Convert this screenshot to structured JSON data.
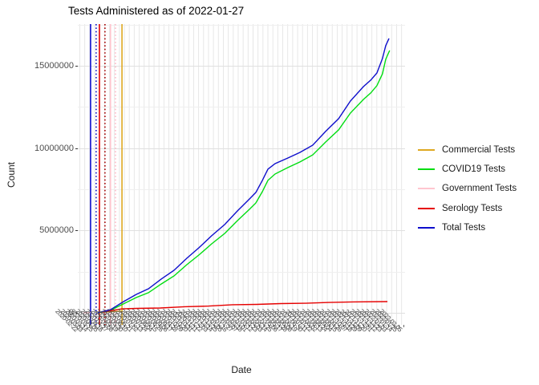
{
  "chart_data": {
    "type": "line",
    "title": "Tests Administered as of 2022-01-27",
    "xlabel": "Date",
    "ylabel": "Count",
    "x_axis": {
      "tick_label_count": 66,
      "tick_start_date": "2020-02-22",
      "tick_end_date": "2022-02-05",
      "labels_overlapping_illegible": true
    },
    "y_axis": {
      "ticks": [
        0,
        5000000,
        10000000,
        15000000
      ],
      "minor_ticks": [
        2500000,
        7500000,
        12500000,
        17500000
      ],
      "min": 0,
      "max": 17500000
    },
    "colors": {
      "commercial": "#DEA821",
      "covid19": "#00DD11",
      "government": "#FFC6CF",
      "serology": "#E60000",
      "total": "#0E0ECC"
    },
    "series": [
      {
        "name": "Commercial Tests",
        "color": "#DEA821",
        "points": [
          [
            0.061,
            0
          ],
          [
            0.081,
            50000
          ],
          [
            0.105,
            70000
          ],
          [
            0.135,
            100000
          ]
        ]
      },
      {
        "name": "COVID19 Tests",
        "color": "#00DD11",
        "points": [
          [
            0.061,
            0
          ],
          [
            0.1,
            150000
          ],
          [
            0.14,
            550000
          ],
          [
            0.179,
            930000
          ],
          [
            0.216,
            1220000
          ],
          [
            0.255,
            1750000
          ],
          [
            0.294,
            2240000
          ],
          [
            0.333,
            2920000
          ],
          [
            0.37,
            3510000
          ],
          [
            0.409,
            4190000
          ],
          [
            0.449,
            4820000
          ],
          [
            0.488,
            5600000
          ],
          [
            0.525,
            6290000
          ],
          [
            0.544,
            6670000
          ],
          [
            0.564,
            7360000
          ],
          [
            0.581,
            8040000
          ],
          [
            0.603,
            8430000
          ],
          [
            0.642,
            8820000
          ],
          [
            0.679,
            9160000
          ],
          [
            0.718,
            9590000
          ],
          [
            0.757,
            10370000
          ],
          [
            0.797,
            11110000
          ],
          [
            0.833,
            12130000
          ],
          [
            0.873,
            12960000
          ],
          [
            0.895,
            13350000
          ],
          [
            0.914,
            13790000
          ],
          [
            0.931,
            14510000
          ],
          [
            0.941,
            15390000
          ],
          [
            0.953,
            15930000
          ]
        ]
      },
      {
        "name": "Government Tests",
        "color": "#FFC6CF",
        "points": [
          [
            0.017,
            0
          ],
          [
            0.039,
            15000
          ]
        ]
      },
      {
        "name": "Serology Tests",
        "color": "#E60000",
        "points": [
          [
            0.076,
            50000
          ],
          [
            0.135,
            240000
          ],
          [
            0.179,
            270000
          ],
          [
            0.252,
            290000
          ],
          [
            0.326,
            370000
          ],
          [
            0.4,
            410000
          ],
          [
            0.473,
            490000
          ],
          [
            0.547,
            510000
          ],
          [
            0.62,
            560000
          ],
          [
            0.694,
            580000
          ],
          [
            0.767,
            630000
          ],
          [
            0.841,
            660000
          ],
          [
            0.946,
            680000
          ]
        ]
      },
      {
        "name": "Total Tests",
        "color": "#0E0ECC",
        "points": [
          [
            0.061,
            0
          ],
          [
            0.1,
            190000
          ],
          [
            0.14,
            680000
          ],
          [
            0.179,
            1120000
          ],
          [
            0.216,
            1460000
          ],
          [
            0.255,
            2050000
          ],
          [
            0.294,
            2580000
          ],
          [
            0.333,
            3310000
          ],
          [
            0.37,
            3950000
          ],
          [
            0.409,
            4680000
          ],
          [
            0.449,
            5360000
          ],
          [
            0.488,
            6190000
          ],
          [
            0.525,
            6920000
          ],
          [
            0.544,
            7310000
          ],
          [
            0.564,
            8040000
          ],
          [
            0.581,
            8720000
          ],
          [
            0.603,
            9060000
          ],
          [
            0.642,
            9400000
          ],
          [
            0.679,
            9740000
          ],
          [
            0.718,
            10180000
          ],
          [
            0.757,
            11010000
          ],
          [
            0.797,
            11790000
          ],
          [
            0.833,
            12860000
          ],
          [
            0.873,
            13740000
          ],
          [
            0.895,
            14130000
          ],
          [
            0.914,
            14560000
          ],
          [
            0.931,
            15440000
          ],
          [
            0.941,
            16220000
          ],
          [
            0.951,
            16660000
          ]
        ]
      }
    ],
    "vlines": [
      {
        "x": 0.039,
        "color": "#0E0ECC",
        "style": "solid"
      },
      {
        "x": 0.056,
        "color": "#0E0ECC",
        "style": "dotted"
      },
      {
        "x": 0.066,
        "color": "#E60000",
        "style": "solid"
      },
      {
        "x": 0.083,
        "color": "#A40000",
        "style": "dotted"
      },
      {
        "x": 0.1,
        "color": "#FFC6CF",
        "style": "solid"
      },
      {
        "x": 0.115,
        "color": "#FFB9C6",
        "style": "dotted"
      },
      {
        "x": 0.135,
        "color": "#DEA821",
        "style": "solid"
      }
    ],
    "legend": [
      {
        "label": "Commercial Tests",
        "color": "#DEA821"
      },
      {
        "label": "COVID19 Tests",
        "color": "#00DD11"
      },
      {
        "label": "Government Tests",
        "color": "#FFC6CF"
      },
      {
        "label": "Serology Tests",
        "color": "#E60000"
      },
      {
        "label": "Total Tests",
        "color": "#0E0ECC"
      }
    ],
    "legend_position": "right"
  }
}
